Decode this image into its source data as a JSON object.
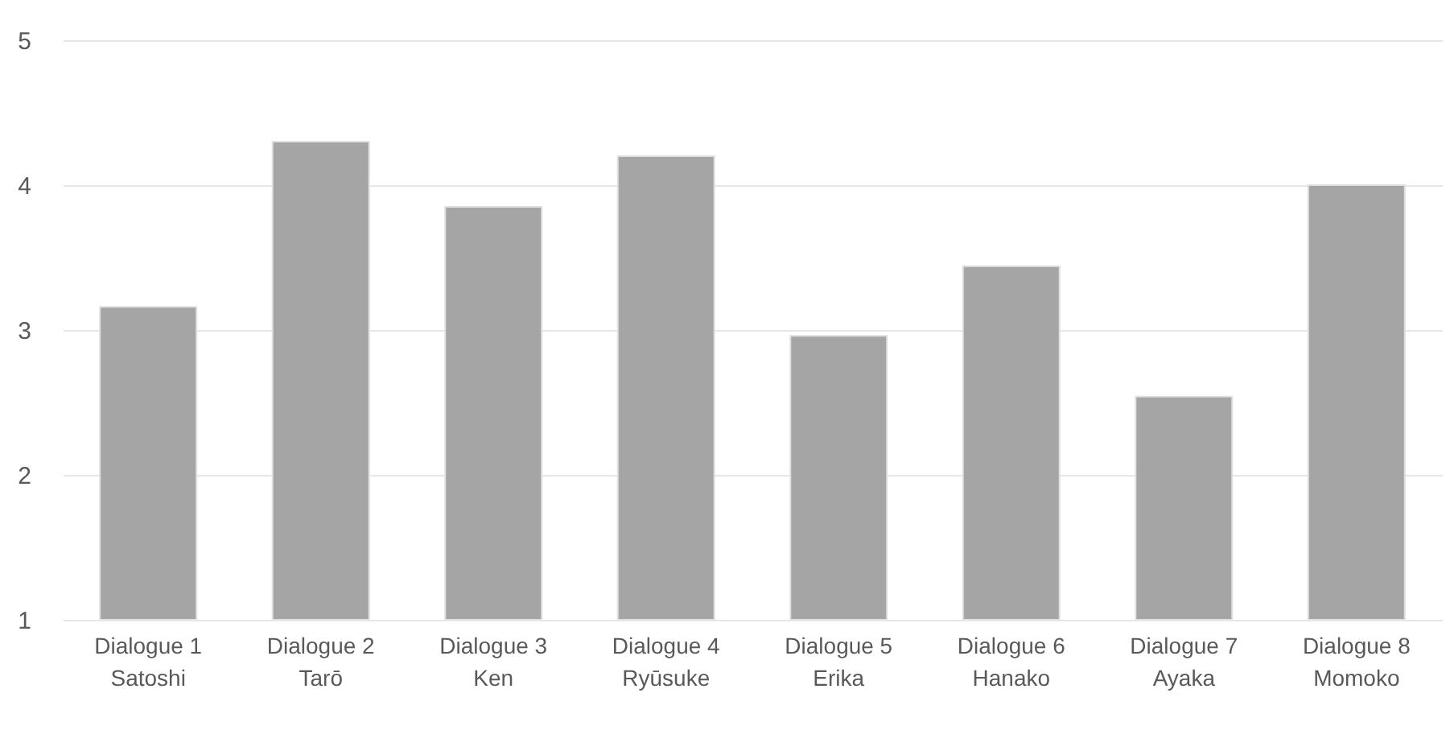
{
  "chart_data": {
    "type": "bar",
    "categories": [
      "Dialogue 1\nSatoshi",
      "Dialogue 2\nTarō",
      "Dialogue 3\nKen",
      "Dialogue 4\nRyūsuke",
      "Dialogue 5\nErika",
      "Dialogue 6\nHanako",
      "Dialogue 7\nAyaka",
      "Dialogue 8\nMomoko"
    ],
    "values": [
      3.16,
      4.3,
      3.85,
      4.2,
      2.96,
      3.44,
      2.54,
      4.0
    ],
    "color": "#a5a5a5",
    "ylim": [
      1,
      5
    ],
    "yticks": [
      1,
      2,
      3,
      4,
      5
    ],
    "grid": "y"
  }
}
